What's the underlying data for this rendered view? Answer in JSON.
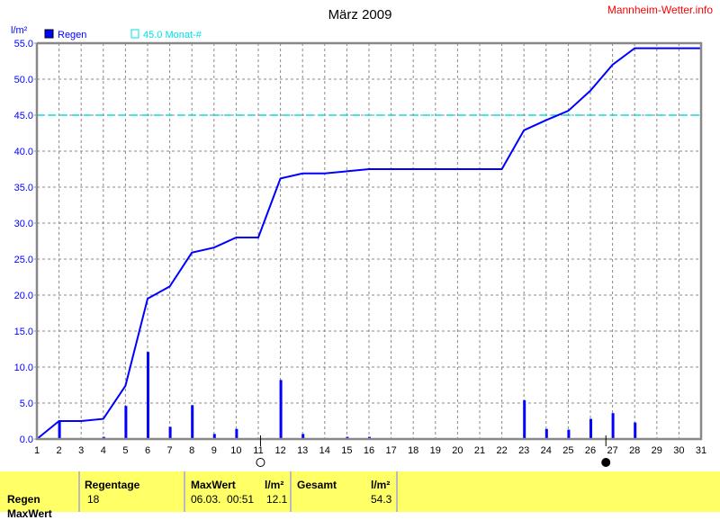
{
  "chart_data": {
    "type": "bar+line",
    "title": "März 2009",
    "source": "Mannheim-Wetter.info",
    "ylabel": "l/m²",
    "ylim": [
      0,
      55
    ],
    "yticks": [
      "0.0",
      "5.0",
      "10.0",
      "15.0",
      "20.0",
      "25.0",
      "30.0",
      "35.0",
      "40.0",
      "45.0",
      "50.0",
      "55.0"
    ],
    "x": [
      1,
      2,
      3,
      4,
      5,
      6,
      7,
      8,
      9,
      10,
      11,
      12,
      13,
      14,
      15,
      16,
      17,
      18,
      19,
      20,
      21,
      22,
      23,
      24,
      25,
      26,
      27,
      28,
      29,
      30,
      31
    ],
    "legend": [
      {
        "name": "Regen",
        "color": "#0000ff"
      },
      {
        "name": "45.0 Monat-#",
        "color": "#00e0e0"
      }
    ],
    "reference_line": 45.0,
    "series": [
      {
        "name": "Regen",
        "type": "bar",
        "values": [
          0,
          2.5,
          0,
          0.3,
          4.6,
          12.1,
          1.7,
          4.7,
          0.7,
          1.4,
          0,
          8.2,
          0.7,
          0,
          0.3,
          0.3,
          0,
          0,
          0,
          0,
          0,
          0,
          5.4,
          1.4,
          1.3,
          2.8,
          3.6,
          2.3,
          0,
          0,
          0
        ]
      },
      {
        "type": "line",
        "values": [
          0,
          2.5,
          2.5,
          2.8,
          7.4,
          19.5,
          21.2,
          25.9,
          26.6,
          28.0,
          28.0,
          36.2,
          36.9,
          36.9,
          37.2,
          37.5,
          37.5,
          37.5,
          37.5,
          37.5,
          37.5,
          37.5,
          42.9,
          44.3,
          45.6,
          48.4,
          52.0,
          54.3,
          54.3,
          54.3,
          54.3
        ]
      }
    ],
    "moon_phases": [
      {
        "phase": "new",
        "day": 11.1
      },
      {
        "phase": "full",
        "day": 26.7
      }
    ],
    "grid": true
  },
  "table": {
    "row_label": "Regen",
    "row_label2": "MaxWert",
    "regentage_header": "Regentage",
    "regentage": "18",
    "maxwert_header": "MaxWert",
    "unit": "l/m²",
    "maxwert_date": "06.03.  00:51",
    "maxwert": "12.1",
    "gesamt_header": "Gesamt",
    "gesamt": "54.3"
  }
}
